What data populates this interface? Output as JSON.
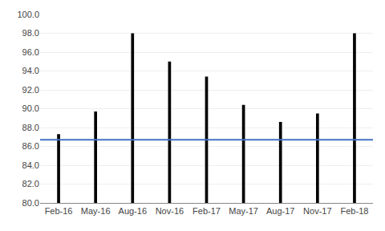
{
  "chart_data": {
    "type": "bar",
    "categories": [
      "Feb-16",
      "May-16",
      "Aug-16",
      "Nov-16",
      "Feb-17",
      "May-17",
      "Aug-17",
      "Nov-17",
      "Feb-18"
    ],
    "values": [
      87.3,
      89.7,
      98.0,
      95.0,
      93.4,
      90.4,
      88.6,
      89.5,
      98.0
    ],
    "color": "#000000",
    "hline": {
      "value": 86.7,
      "color": "#4472c4"
    },
    "ylim": [
      80.0,
      100.0
    ],
    "yticks": [
      {
        "value": 80,
        "label": "80.0"
      },
      {
        "value": 82,
        "label": "82.0"
      },
      {
        "value": 84,
        "label": "84.0"
      },
      {
        "value": 86,
        "label": "86.0"
      },
      {
        "value": 88,
        "label": "88.0"
      },
      {
        "value": 90,
        "label": "90.0"
      },
      {
        "value": 92,
        "label": "92.0"
      },
      {
        "value": 94,
        "label": "94.0"
      },
      {
        "value": 96,
        "label": "96.0"
      },
      {
        "value": 98,
        "label": "98.0"
      },
      {
        "value": 100,
        "label": "100.0"
      }
    ],
    "grid": true
  }
}
